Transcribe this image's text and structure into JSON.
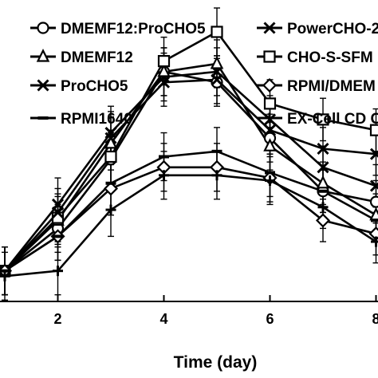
{
  "chart_data": {
    "type": "line",
    "title": "",
    "xlabel": "Time (day)",
    "ylabel": "",
    "xlim": [
      0.2,
      8.5
    ],
    "ylim": [
      0,
      100
    ],
    "x_ticks": [
      2,
      4,
      6,
      8
    ],
    "x_tick_labels": [
      "2",
      "4",
      "6",
      "8"
    ],
    "x": [
      1,
      2,
      3,
      4,
      5,
      6,
      7,
      8
    ],
    "grid": false,
    "legend_placement": "top, two columns",
    "series": [
      {
        "name": "DMEMF12:ProCHO5",
        "marker": "circle",
        "values": [
          4,
          20,
          46,
          79,
          75,
          54,
          34,
          30
        ],
        "errors": [
          9,
          9,
          10,
          9,
          9,
          9,
          8,
          8
        ]
      },
      {
        "name": "PowerCHO-2",
        "marker": "x",
        "values": [
          4,
          29,
          56,
          77,
          79,
          61,
          43,
          36
        ],
        "errors": [
          9,
          10,
          10,
          9,
          9,
          9,
          8,
          8
        ]
      },
      {
        "name": "DMEMF12",
        "marker": "triangle",
        "values": [
          4,
          23,
          52,
          79,
          82,
          51,
          37,
          25
        ],
        "errors": [
          9,
          9,
          10,
          9,
          9,
          9,
          8,
          8
        ]
      },
      {
        "name": "CHO-S-SFM",
        "marker": "square",
        "values": [
          4,
          24,
          47,
          83,
          94,
          67,
          61,
          57
        ],
        "errors": [
          9,
          9,
          10,
          9,
          9,
          9,
          8,
          8
        ]
      },
      {
        "name": "ProCHO5",
        "marker": "x",
        "values": [
          4,
          26,
          54,
          75,
          76,
          57,
          50,
          48
        ],
        "errors": [
          9,
          9,
          10,
          9,
          9,
          9,
          8,
          8
        ]
      },
      {
        "name": "RPMI/DMEM",
        "marker": "diamond",
        "values": [
          4,
          17,
          35,
          43,
          43,
          39,
          23,
          18
        ],
        "errors": [
          9,
          9,
          10,
          9,
          9,
          9,
          8,
          8
        ]
      },
      {
        "name": "RPMI1640",
        "marker": "dash",
        "values": [
          4,
          17,
          37,
          47,
          49,
          41,
          34,
          23
        ],
        "errors": [
          9,
          9,
          10,
          9,
          9,
          9,
          8,
          8
        ]
      },
      {
        "name": "EX-Cell CD C",
        "marker": "plus",
        "values": [
          2,
          4,
          27,
          40,
          40,
          38,
          28,
          15
        ],
        "errors": [
          9,
          9,
          10,
          9,
          9,
          9,
          8,
          8
        ]
      }
    ]
  }
}
